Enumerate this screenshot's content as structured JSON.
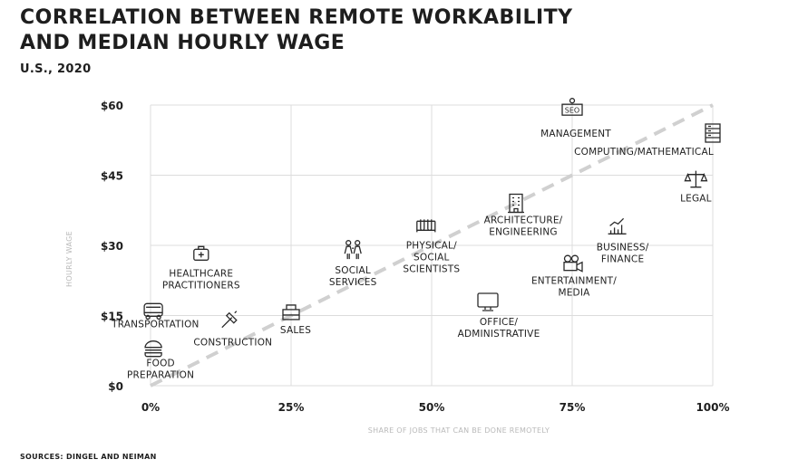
{
  "header": {
    "title_line1": "CORRELATION BETWEEN REMOTE WORKABILITY",
    "title_line2": "AND MEDIAN HOURLY WAGE",
    "subtitle": "U.S., 2020"
  },
  "footer": {
    "source": "SOURCES: DINGEL AND NEIMAN"
  },
  "chart_data": {
    "type": "scatter",
    "title": "CORRELATION BETWEEN REMOTE WORKABILITY AND MEDIAN HOURLY WAGE",
    "subtitle": "U.S., 2020",
    "xlabel": "SHARE OF JOBS THAT CAN BE DONE REMOTELY",
    "ylabel": "HOURLY WAGE",
    "xlim": [
      0,
      100
    ],
    "ylim": [
      0,
      60
    ],
    "x_ticks": [
      0,
      25,
      50,
      75,
      100
    ],
    "x_tick_labels": [
      "0%",
      "25%",
      "50%",
      "75%",
      "100%"
    ],
    "y_ticks": [
      0,
      15,
      30,
      45,
      60
    ],
    "y_tick_labels": [
      "$0",
      "$15",
      "$30",
      "$45",
      "$60"
    ],
    "grid": true,
    "trendline": {
      "style": "dashed",
      "from": [
        0,
        0
      ],
      "to": [
        100,
        60
      ]
    },
    "points": [
      {
        "label": "HEALTHCARE PRACTITIONERS",
        "lines": [
          "HEALTHCARE",
          "PRACTITIONERS"
        ],
        "x": 9,
        "y": 28,
        "icon": "first-aid-kit-icon"
      },
      {
        "label": "TRANSPORTATION",
        "lines": [
          "TRANSPORTATION"
        ],
        "x": 0.5,
        "y": 16,
        "icon": "bus-icon"
      },
      {
        "label": "FOOD PREPARATION",
        "lines": [
          "FOOD",
          "PREPARATION"
        ],
        "x": 0.5,
        "y": 8,
        "icon": "burger-icon"
      },
      {
        "label": "CONSTRUCTION",
        "lines": [
          "CONSTRUCTION"
        ],
        "x": 14,
        "y": 14,
        "icon": "hammer-icon"
      },
      {
        "label": "SALES",
        "lines": [
          "SALES"
        ],
        "x": 25,
        "y": 15.5,
        "icon": "cash-register-icon"
      },
      {
        "label": "SOCIAL SERVICES",
        "lines": [
          "SOCIAL",
          "SERVICES"
        ],
        "x": 36,
        "y": 29,
        "icon": "people-icon"
      },
      {
        "label": "PHYSICAL/ SOCIAL SCIENTISTS",
        "lines": [
          "PHYSICAL/",
          "SOCIAL",
          "SCIENTISTS"
        ],
        "x": 49,
        "y": 34,
        "icon": "test-tubes-icon"
      },
      {
        "label": "OFFICE/ ADMINISTRATIVE",
        "lines": [
          "OFFICE/",
          "ADMINISTRATIVE"
        ],
        "x": 60,
        "y": 18,
        "icon": "monitor-icon"
      },
      {
        "label": "ARCHITECTURE/ ENGINEERING",
        "lines": [
          "ARCHITECTURE/",
          "ENGINEERING"
        ],
        "x": 65,
        "y": 39,
        "icon": "building-icon"
      },
      {
        "label": "MANAGEMENT",
        "lines": [
          "MANAGEMENT"
        ],
        "x": 75,
        "y": 59,
        "icon": "seo-presenter-icon"
      },
      {
        "label": "ENTERTAINMENT/ MEDIA",
        "lines": [
          "ENTERTAINMENT/",
          "MEDIA"
        ],
        "x": 75,
        "y": 26,
        "icon": "film-camera-icon"
      },
      {
        "label": "BUSINESS/ FINANCE",
        "lines": [
          "BUSINESS/",
          "FINANCE"
        ],
        "x": 83,
        "y": 34,
        "icon": "bar-chart-icon"
      },
      {
        "label": "COMPUTING/ MATHEMATICAL",
        "lines": [
          "COMPUTING/MATHEMATICAL"
        ],
        "x": 100,
        "y": 54,
        "icon": "server-icon"
      },
      {
        "label": "LEGAL",
        "lines": [
          "LEGAL"
        ],
        "x": 97,
        "y": 44,
        "icon": "scales-icon"
      }
    ]
  }
}
